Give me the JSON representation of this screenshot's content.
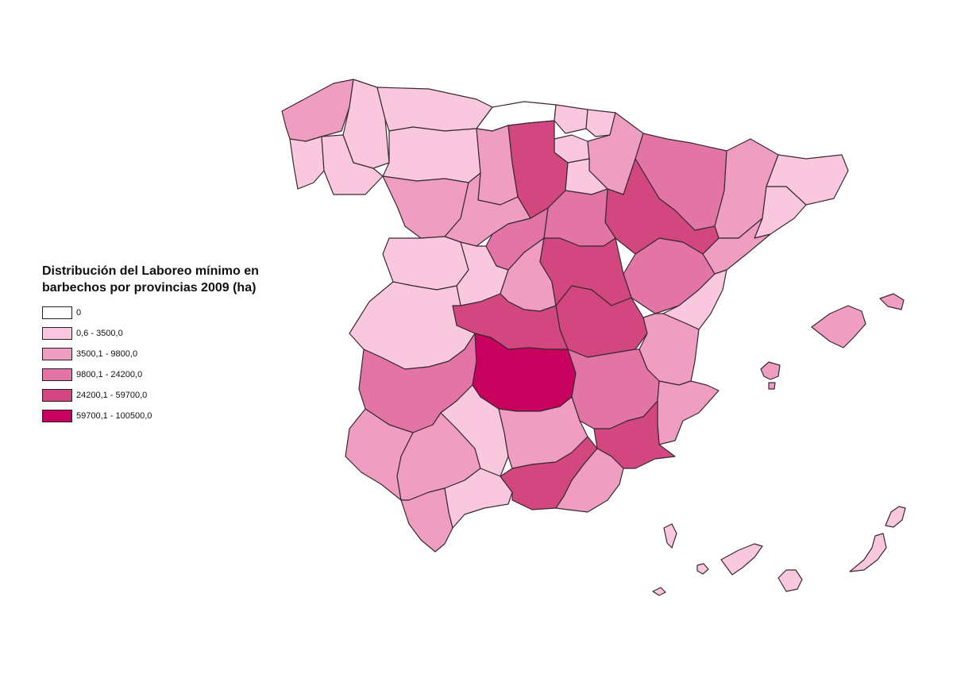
{
  "legend": {
    "title_line1": "Distribución del Laboreo mínimo en",
    "title_line2": "barbechos por provincias 2009 (ha)",
    "classes": [
      {
        "label": "0",
        "color": "#ffffff"
      },
      {
        "label": "0,6 - 3500,0",
        "color": "#f9c8df"
      },
      {
        "label": "3500,1 - 9800,0",
        "color": "#ef9dc1"
      },
      {
        "label": "9800,1 - 24200,0",
        "color": "#e374a6"
      },
      {
        "label": "24200,1 - 59700,0",
        "color": "#d2477f"
      },
      {
        "label": "59700,1 - 100500,0",
        "color": "#c8005e"
      }
    ]
  },
  "regions": [
    {
      "name": "a-coruna",
      "class": 2
    },
    {
      "name": "lugo",
      "class": 1
    },
    {
      "name": "asturias",
      "class": 1
    },
    {
      "name": "cantabria",
      "class": 0
    },
    {
      "name": "vizcaya",
      "class": 1
    },
    {
      "name": "guipuzcoa",
      "class": 1
    },
    {
      "name": "pontevedra",
      "class": 1
    },
    {
      "name": "ourense",
      "class": 1
    },
    {
      "name": "leon",
      "class": 1
    },
    {
      "name": "palencia",
      "class": 2
    },
    {
      "name": "burgos",
      "class": 4
    },
    {
      "name": "alava",
      "class": 1
    },
    {
      "name": "la-rioja",
      "class": 1
    },
    {
      "name": "navarra",
      "class": 2
    },
    {
      "name": "huesca",
      "class": 3
    },
    {
      "name": "lleida",
      "class": 2
    },
    {
      "name": "girona",
      "class": 1
    },
    {
      "name": "barcelona",
      "class": 1
    },
    {
      "name": "zamora",
      "class": 2
    },
    {
      "name": "valladolid",
      "class": 2
    },
    {
      "name": "segovia",
      "class": 3
    },
    {
      "name": "soria",
      "class": 3
    },
    {
      "name": "zaragoza",
      "class": 4
    },
    {
      "name": "tarragona",
      "class": 2
    },
    {
      "name": "salamanca",
      "class": 1
    },
    {
      "name": "avila",
      "class": 1
    },
    {
      "name": "madrid",
      "class": 2
    },
    {
      "name": "guadalajara",
      "class": 4
    },
    {
      "name": "teruel",
      "class": 3
    },
    {
      "name": "castellon",
      "class": 1
    },
    {
      "name": "caceres",
      "class": 1
    },
    {
      "name": "toledo",
      "class": 4
    },
    {
      "name": "cuenca",
      "class": 4
    },
    {
      "name": "valencia",
      "class": 2
    },
    {
      "name": "badajoz",
      "class": 3
    },
    {
      "name": "ciudad-real",
      "class": 5
    },
    {
      "name": "albacete",
      "class": 3
    },
    {
      "name": "alicante",
      "class": 2
    },
    {
      "name": "huelva",
      "class": 2
    },
    {
      "name": "sevilla",
      "class": 2
    },
    {
      "name": "cordoba",
      "class": 1
    },
    {
      "name": "jaen",
      "class": 2
    },
    {
      "name": "murcia",
      "class": 4
    },
    {
      "name": "cadiz",
      "class": 2
    },
    {
      "name": "malaga",
      "class": 1
    },
    {
      "name": "granada",
      "class": 4
    },
    {
      "name": "almeria",
      "class": 2
    },
    {
      "name": "mallorca",
      "class": 2
    },
    {
      "name": "menorca",
      "class": 2
    },
    {
      "name": "ibiza",
      "class": 2
    },
    {
      "name": "lanzarote",
      "class": 1
    },
    {
      "name": "fuerteventura",
      "class": 1
    },
    {
      "name": "gran-canaria",
      "class": 1
    },
    {
      "name": "tenerife",
      "class": 1
    },
    {
      "name": "la-gomera",
      "class": 1
    },
    {
      "name": "la-palma",
      "class": 1
    },
    {
      "name": "el-hierro",
      "class": 1
    }
  ]
}
